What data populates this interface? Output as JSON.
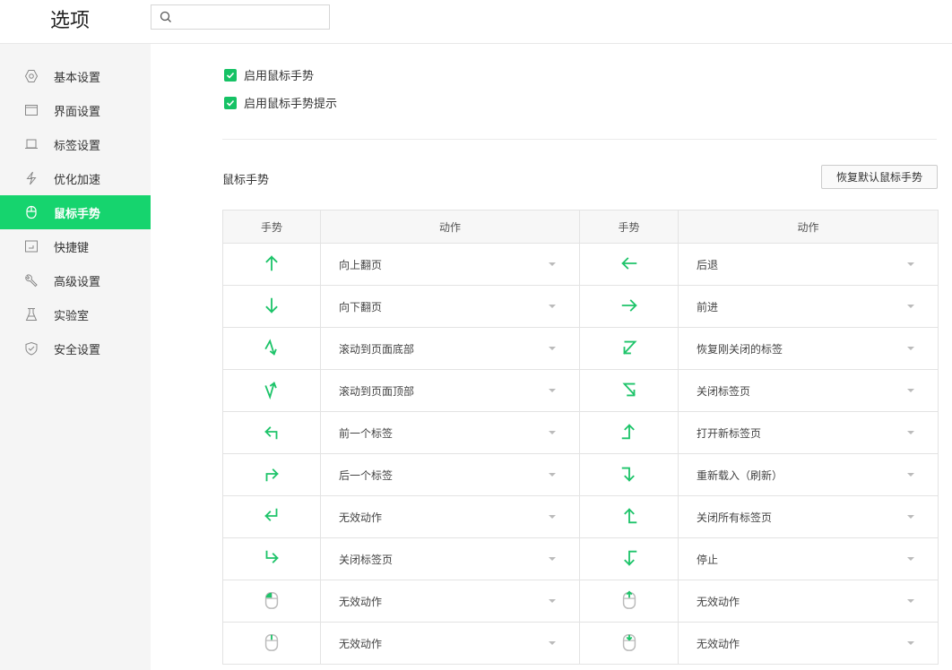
{
  "header": {
    "title": "选项",
    "search_placeholder": ""
  },
  "sidebar": {
    "items": [
      {
        "label": "基本设置",
        "icon": "hexagon-settings-icon"
      },
      {
        "label": "界面设置",
        "icon": "window-icon"
      },
      {
        "label": "标签设置",
        "icon": "tab-icon"
      },
      {
        "label": "优化加速",
        "icon": "lightning-icon"
      },
      {
        "label": "鼠标手势",
        "icon": "mouse-icon",
        "active": true
      },
      {
        "label": "快捷键",
        "icon": "keyboard-shortcut-icon"
      },
      {
        "label": "高级设置",
        "icon": "wrench-icon"
      },
      {
        "label": "实验室",
        "icon": "flask-icon"
      },
      {
        "label": "安全设置",
        "icon": "shield-icon"
      }
    ]
  },
  "options": [
    {
      "label": "启用鼠标手势",
      "checked": true
    },
    {
      "label": "启用鼠标手势提示",
      "checked": true
    }
  ],
  "section": {
    "title": "鼠标手势",
    "reset_label": "恢复默认鼠标手势"
  },
  "table": {
    "headers": [
      "手势",
      "动作",
      "手势",
      "动作"
    ],
    "rows": [
      [
        {
          "gesture": "up",
          "action": "向上翻页"
        },
        {
          "gesture": "left",
          "action": "后退"
        }
      ],
      [
        {
          "gesture": "down",
          "action": "向下翻页"
        },
        {
          "gesture": "right",
          "action": "前进"
        }
      ],
      [
        {
          "gesture": "up-down-zigzag",
          "action": "滚动到页面底部"
        },
        {
          "gesture": "right-left-zigzag",
          "action": "恢复刚关闭的标签"
        }
      ],
      [
        {
          "gesture": "down-up-zigzag",
          "action": "滚动到页面顶部"
        },
        {
          "gesture": "left-right-zigzag",
          "action": "关闭标签页"
        }
      ],
      [
        {
          "gesture": "up-left",
          "action": "前一个标签"
        },
        {
          "gesture": "right-up",
          "action": "打开新标签页"
        }
      ],
      [
        {
          "gesture": "up-right",
          "action": "后一个标签"
        },
        {
          "gesture": "right-down",
          "action": "重新载入（刷新）"
        }
      ],
      [
        {
          "gesture": "down-left",
          "action": "无效动作"
        },
        {
          "gesture": "left-up",
          "action": "关闭所有标签页"
        }
      ],
      [
        {
          "gesture": "down-right",
          "action": "关闭标签页"
        },
        {
          "gesture": "left-down",
          "action": "停止"
        }
      ],
      [
        {
          "gesture": "mouse-left-click",
          "action": "无效动作"
        },
        {
          "gesture": "mouse-wheel-up",
          "action": "无效动作"
        }
      ],
      [
        {
          "gesture": "mouse-middle-click",
          "action": "无效动作"
        },
        {
          "gesture": "mouse-wheel-down",
          "action": "无效动作"
        }
      ]
    ]
  },
  "colors": {
    "accent": "#16d46e",
    "gesture": "#1ec46a"
  }
}
